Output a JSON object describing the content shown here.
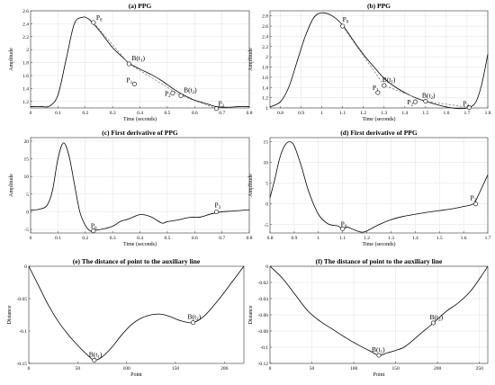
{
  "chart_data": [
    {
      "id": "a",
      "type": "line",
      "title": "(a) PPG",
      "xlabel": "Time (seconds)",
      "ylabel": "Amplitude",
      "xlim": [
        0,
        0.8
      ],
      "ylim": [
        1.1,
        2.6
      ],
      "xticks": [
        0,
        0.1,
        0.2,
        0.3,
        0.4,
        0.5,
        0.6,
        0.7,
        0.8
      ],
      "yticks": [
        1.2,
        1.4,
        1.6,
        1.8,
        2,
        2.2,
        2.4,
        2.6
      ],
      "grid": true,
      "series": [
        {
          "style": "solid",
          "x": [
            0,
            0.04,
            0.07,
            0.1,
            0.13,
            0.16,
            0.19,
            0.21,
            0.23,
            0.26,
            0.3,
            0.34,
            0.36,
            0.4,
            0.44,
            0.48,
            0.52,
            0.56,
            0.6,
            0.64,
            0.68,
            0.72,
            0.76,
            0.8
          ],
          "y": [
            1.12,
            1.12,
            1.13,
            1.3,
            1.85,
            2.4,
            2.5,
            2.48,
            2.4,
            2.25,
            2.03,
            1.87,
            1.79,
            1.7,
            1.62,
            1.52,
            1.4,
            1.3,
            1.22,
            1.17,
            1.12,
            1.11,
            1.12,
            1.12
          ]
        },
        {
          "style": "dashed",
          "x": [
            0.23,
            0.36,
            0.55,
            0.68
          ],
          "y": [
            2.42,
            1.78,
            1.29,
            1.09
          ]
        }
      ],
      "annotations": [
        {
          "text": "P",
          "sub": "0",
          "x": 0.23,
          "y": 2.42,
          "marker": true
        },
        {
          "text": "B(t",
          "sub": "1",
          "tail": ")",
          "x": 0.36,
          "y": 1.78,
          "marker": true
        },
        {
          "text": "P",
          "sub": "1",
          "x": 0.38,
          "y": 1.47,
          "marker": true
        },
        {
          "text": "B(t",
          "sub": "2",
          "tail": ")",
          "x": 0.55,
          "y": 1.29,
          "marker": true
        },
        {
          "text": "P",
          "sub": "2",
          "x": 0.52,
          "y": 1.33,
          "marker": true
        },
        {
          "text": "P",
          "sub": "3",
          "x": 0.68,
          "y": 1.09,
          "marker": true
        }
      ]
    },
    {
      "id": "b",
      "type": "line",
      "title": "(b) PPG",
      "xlabel": "Time (seconds)",
      "ylabel": "Amplitude",
      "xlim": [
        0.75,
        1.8
      ],
      "ylim": [
        1.0,
        2.9
      ],
      "xticks": [
        0.8,
        0.9,
        1,
        1.1,
        1.2,
        1.3,
        1.4,
        1.5,
        1.6,
        1.7,
        1.8
      ],
      "yticks": [
        1,
        1.2,
        1.4,
        1.6,
        1.8,
        2,
        2.2,
        2.4,
        2.6,
        2.8
      ],
      "grid": true,
      "series": [
        {
          "style": "solid",
          "x": [
            0.75,
            0.8,
            0.84,
            0.88,
            0.92,
            0.96,
            1.0,
            1.05,
            1.1,
            1.15,
            1.2,
            1.26,
            1.3,
            1.35,
            1.4,
            1.45,
            1.5,
            1.55,
            1.6,
            1.65,
            1.7,
            1.74,
            1.77,
            1.8
          ],
          "y": [
            1.02,
            1.12,
            1.4,
            1.9,
            2.4,
            2.76,
            2.86,
            2.8,
            2.62,
            2.33,
            2.05,
            1.76,
            1.58,
            1.42,
            1.3,
            1.2,
            1.13,
            1.07,
            1.02,
            0.99,
            1.0,
            1.1,
            1.45,
            2.05
          ]
        },
        {
          "style": "dashed",
          "x": [
            1.1,
            1.3,
            1.5,
            1.71
          ],
          "y": [
            2.6,
            1.44,
            1.13,
            1.01
          ]
        }
      ],
      "annotations": [
        {
          "text": "P",
          "sub": "0",
          "x": 1.1,
          "y": 2.6,
          "marker": true
        },
        {
          "text": "B(t",
          "sub": "1",
          "tail": ")",
          "x": 1.3,
          "y": 1.44,
          "marker": true
        },
        {
          "text": "P",
          "sub": "1",
          "x": 1.27,
          "y": 1.3,
          "marker": true
        },
        {
          "text": "B(t",
          "sub": "2",
          "tail": ")",
          "x": 1.5,
          "y": 1.13,
          "marker": true
        },
        {
          "text": "P",
          "sub": "2",
          "x": 1.45,
          "y": 1.12,
          "marker": true
        },
        {
          "text": "P",
          "sub": "3",
          "x": 1.71,
          "y": 1.01,
          "marker": true
        }
      ]
    },
    {
      "id": "c",
      "type": "line",
      "title": "(c) First derivative of PPG",
      "xlabel": "Time (seconds)",
      "ylabel": "Amplitude",
      "xlim": [
        0,
        0.8
      ],
      "ylim": [
        -6,
        21
      ],
      "xticks": [
        0,
        0.1,
        0.2,
        0.3,
        0.4,
        0.5,
        0.6,
        0.7,
        0.8
      ],
      "yticks": [
        -5,
        0,
        5,
        10,
        15,
        20
      ],
      "grid": true,
      "series": [
        {
          "style": "solid",
          "x": [
            0,
            0.03,
            0.06,
            0.08,
            0.1,
            0.12,
            0.14,
            0.16,
            0.18,
            0.2,
            0.22,
            0.24,
            0.27,
            0.3,
            0.33,
            0.36,
            0.4,
            0.44,
            0.48,
            0.5,
            0.54,
            0.58,
            0.62,
            0.66,
            0.7,
            0.74,
            0.8
          ],
          "y": [
            0.5,
            0.7,
            1.8,
            6,
            15,
            19.5,
            16,
            8,
            0,
            -3.8,
            -5.5,
            -5.2,
            -4.8,
            -4.1,
            -2.7,
            -2,
            -0.8,
            -1.4,
            -3.2,
            -2.8,
            -2.3,
            -1.6,
            -1.5,
            -0.6,
            0,
            0.2,
            0.6
          ]
        }
      ],
      "annotations": [
        {
          "text": "P",
          "sub": "0",
          "x": 0.23,
          "y": -5.4,
          "marker": true
        },
        {
          "text": "P",
          "sub": "3",
          "x": 0.68,
          "y": 0.0,
          "marker": true
        }
      ]
    },
    {
      "id": "d",
      "type": "line",
      "title": "(d) First derivative of PPG",
      "xlabel": "Time (seconds)",
      "ylabel": "Amplitude",
      "xlim": [
        0.8,
        1.7
      ],
      "ylim": [
        -7,
        16
      ],
      "xticks": [
        0.8,
        0.9,
        1,
        1.1,
        1.2,
        1.3,
        1.4,
        1.5,
        1.6,
        1.7
      ],
      "yticks": [
        -5,
        0,
        5,
        10,
        15
      ],
      "grid": true,
      "series": [
        {
          "style": "solid",
          "x": [
            0.8,
            0.82,
            0.84,
            0.86,
            0.88,
            0.9,
            0.93,
            0.96,
            1.0,
            1.04,
            1.08,
            1.1,
            1.12,
            1.15,
            1.18,
            1.2,
            1.25,
            1.3,
            1.35,
            1.4,
            1.45,
            1.5,
            1.55,
            1.6,
            1.64,
            1.66,
            1.68,
            1.7
          ],
          "y": [
            1.5,
            6,
            11,
            14,
            15,
            14,
            9,
            3,
            -2.5,
            -4.8,
            -5.3,
            -6,
            -5.6,
            -6.3,
            -6.8,
            -6.5,
            -5,
            -3.8,
            -3,
            -2.5,
            -2,
            -1.6,
            -1.2,
            -0.6,
            0,
            2,
            4.5,
            7
          ]
        }
      ],
      "annotations": [
        {
          "text": "P",
          "sub": "0",
          "x": 1.1,
          "y": -6.0,
          "marker": true
        },
        {
          "text": "P",
          "sub": "3",
          "x": 1.65,
          "y": 0.0,
          "marker": true
        }
      ]
    },
    {
      "id": "e",
      "type": "line",
      "title": "(e) The distance of point to the auxiliary line",
      "xlabel": "Point",
      "ylabel": "Distance",
      "xlim": [
        0,
        220
      ],
      "ylim": [
        -0.15,
        0
      ],
      "xticks": [
        0,
        50,
        100,
        150,
        200
      ],
      "yticks": [
        -0.15,
        -0.1,
        -0.05,
        0
      ],
      "grid": false,
      "series": [
        {
          "style": "solid",
          "x": [
            0,
            10,
            20,
            30,
            40,
            50,
            60,
            67,
            75,
            85,
            95,
            105,
            115,
            125,
            135,
            145,
            155,
            168,
            180,
            195,
            210,
            220
          ],
          "y": [
            0,
            -0.03,
            -0.06,
            -0.085,
            -0.105,
            -0.122,
            -0.137,
            -0.145,
            -0.14,
            -0.125,
            -0.106,
            -0.09,
            -0.08,
            -0.075,
            -0.074,
            -0.078,
            -0.084,
            -0.087,
            -0.076,
            -0.05,
            -0.02,
            0
          ]
        }
      ],
      "annotations": [
        {
          "text": "B(t",
          "sub": "1",
          "tail": ")",
          "x": 67,
          "y": -0.145,
          "marker": true
        },
        {
          "text": "B(t",
          "sub": "2",
          "tail": ")",
          "x": 168,
          "y": -0.087,
          "marker": true
        }
      ]
    },
    {
      "id": "f",
      "type": "line",
      "title": "(f) The distance of point to the auxiliary line",
      "xlabel": "Point",
      "ylabel": "Distance",
      "xlim": [
        0,
        260
      ],
      "ylim": [
        -0.12,
        0
      ],
      "xticks": [
        0,
        50,
        100,
        150,
        200,
        250
      ],
      "yticks": [
        -0.12,
        -0.1,
        -0.08,
        -0.06,
        -0.04,
        -0.02,
        0
      ],
      "grid": true,
      "series": [
        {
          "style": "solid",
          "x": [
            0,
            15,
            30,
            45,
            60,
            75,
            90,
            105,
            120,
            130,
            140,
            150,
            160,
            170,
            180,
            195,
            210,
            225,
            240,
            255,
            260
          ],
          "y": [
            0,
            -0.015,
            -0.035,
            -0.055,
            -0.068,
            -0.078,
            -0.088,
            -0.097,
            -0.105,
            -0.11,
            -0.107,
            -0.104,
            -0.1,
            -0.092,
            -0.083,
            -0.07,
            -0.056,
            -0.045,
            -0.03,
            -0.008,
            0
          ]
        }
      ],
      "annotations": [
        {
          "text": "B(t",
          "sub": "1",
          "tail": ")",
          "x": 130,
          "y": -0.11,
          "marker": true
        },
        {
          "text": "B(t",
          "sub": "2",
          "tail": ")",
          "x": 195,
          "y": -0.07,
          "marker": true
        }
      ]
    }
  ]
}
